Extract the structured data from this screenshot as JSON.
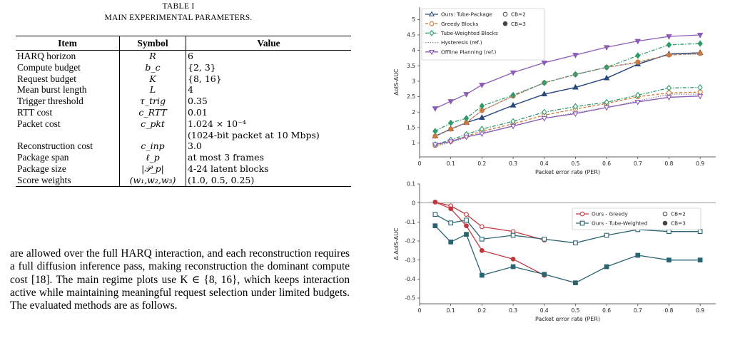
{
  "table": {
    "caption_num": "TABLE I",
    "caption_title": "MAIN EXPERIMENTAL PARAMETERS.",
    "headers": [
      "Item",
      "Symbol",
      "Value"
    ],
    "rows": [
      {
        "item": "HARQ horizon",
        "symbol": "R",
        "value": "6"
      },
      {
        "item": "Compute budget",
        "symbol": "b_c",
        "value": "{2, 3}"
      },
      {
        "item": "Request budget",
        "symbol": "K",
        "value": "{8, 16}"
      },
      {
        "item": "Mean burst length",
        "symbol": "L",
        "value": "4"
      },
      {
        "item": "Trigger threshold",
        "symbol": "τ_trig",
        "value": "0.35"
      },
      {
        "item": "RTT cost",
        "symbol": "c_RTT",
        "value": "0.01"
      },
      {
        "item": "Packet cost",
        "symbol": "c_pkt",
        "value": "1.024 × 10⁻⁴",
        "value2": "(1024-bit packet at 10 Mbps)"
      },
      {
        "item": "Reconstruction cost",
        "symbol": "c_inp",
        "value": "3.0"
      },
      {
        "item": "Package span",
        "symbol": "ℓ_p",
        "value": "at most 3 frames"
      },
      {
        "item": "Package size",
        "symbol": "|𝒫_p|",
        "value": "4-24 latent blocks"
      },
      {
        "item": "Score weights",
        "symbol": "(w₁,w₂,w₃)",
        "value": "(1.0, 0.5, 0.25)"
      }
    ]
  },
  "body_text": "are allowed over the full HARQ interaction, and each reconstruction requires a full diffusion inference pass, making reconstruction the dominant compute cost [18]. The main regime plots use K ∈ {8, 16}, which keeps interaction active while maintaining meaningful request selection under limited budgets. The evaluated methods are as follows.",
  "chart_data": [
    {
      "type": "line",
      "xlabel": "Packet error rate (PER)",
      "ylabel": "AoIS-AUC",
      "xlim": [
        0,
        0.95
      ],
      "ylim": [
        0.55,
        5.4
      ],
      "xticks": [
        "0",
        "0.1",
        "0.2",
        "0.3",
        "0.4",
        "0.5",
        "0.6",
        "0.7",
        "0.8",
        "0.9"
      ],
      "yticks": [
        "1",
        "1.5",
        "2",
        "2.5",
        "3",
        "3.5",
        "4",
        "4.5",
        "5"
      ],
      "legend_position": "top-left",
      "x": [
        0.05,
        0.1,
        0.15,
        0.2,
        0.3,
        0.4,
        0.5,
        0.6,
        0.7,
        0.8,
        0.9
      ],
      "series": [
        {
          "name": "Ours: Tube-Package",
          "color": "#2a4a7e",
          "marker": "triangle-up",
          "dash": "solid",
          "cb2": [
            1.22,
            1.45,
            1.66,
            1.82,
            2.22,
            2.58,
            2.8,
            3.1,
            3.55,
            3.88,
            3.92
          ],
          "cb3": [
            1.22,
            1.45,
            1.66,
            1.82,
            2.22,
            2.58,
            2.8,
            3.1,
            3.55,
            3.88,
            3.92
          ]
        },
        {
          "name": "Greedy Blocks",
          "color": "#d07838",
          "marker": "circle",
          "dash": "dash",
          "cb2": [
            0.92,
            1.05,
            1.22,
            1.38,
            1.62,
            1.9,
            2.1,
            2.28,
            2.5,
            2.62,
            2.65
          ],
          "cb3": [
            1.22,
            1.45,
            1.66,
            2.05,
            2.52,
            2.95,
            3.22,
            3.45,
            3.62,
            3.85,
            3.9
          ]
        },
        {
          "name": "Tube-Weighted Blocks",
          "color": "#2e9a68",
          "marker": "diamond",
          "dash": "dashdot",
          "cb2": [
            0.95,
            1.1,
            1.28,
            1.45,
            1.7,
            2.0,
            2.18,
            2.32,
            2.55,
            2.78,
            2.8
          ],
          "cb3": [
            1.38,
            1.65,
            1.8,
            2.2,
            2.55,
            2.95,
            3.22,
            3.45,
            3.83,
            4.18,
            4.22
          ]
        },
        {
          "name": "Hysteresis (ref.)",
          "color": "#8a8a9c",
          "marker": "none",
          "dash": "dot",
          "cb2": [
            0.88,
            1.02,
            1.18,
            1.32,
            1.55,
            1.8,
            1.98,
            2.15,
            2.36,
            2.58,
            2.58
          ],
          "cb3": [
            1.22,
            1.45,
            1.66,
            2.05,
            2.52,
            2.95,
            3.22,
            3.45,
            3.6,
            3.85,
            3.88
          ]
        },
        {
          "name": "Offline Planning (ref.)",
          "color": "#8a5cb8",
          "marker": "triangle-down",
          "dash": "solid",
          "cb2": [
            0.95,
            1.05,
            1.2,
            1.3,
            1.55,
            1.8,
            1.95,
            2.15,
            2.33,
            2.48,
            2.52
          ],
          "cb3": [
            2.12,
            2.35,
            2.58,
            2.88,
            3.28,
            3.6,
            3.85,
            4.1,
            4.3,
            4.45,
            4.5
          ]
        }
      ],
      "cb_legend": [
        {
          "label": "CB=2",
          "style": "open-circle"
        },
        {
          "label": "CB=3",
          "style": "filled-circle"
        }
      ]
    },
    {
      "type": "line",
      "xlabel": "Packet error rate (PER)",
      "ylabel": "Δ AoIS-AUC",
      "xlim": [
        0,
        0.95
      ],
      "ylim": [
        -0.53,
        0.1
      ],
      "xticks": [
        "0",
        "0.1",
        "0.2",
        "0.3",
        "0.4",
        "0.5",
        "0.6",
        "0.7",
        "0.8",
        "0.9"
      ],
      "yticks": [
        "0.1",
        "0",
        "-0.1",
        "-0.2",
        "-0.3",
        "-0.4",
        "-0.5"
      ],
      "legend_position": "top-right",
      "x": [
        0.05,
        0.1,
        0.15,
        0.2,
        0.3,
        0.4,
        0.5,
        0.6,
        0.7,
        0.8,
        0.9
      ],
      "series": [
        {
          "name": "Ours - Greedy",
          "color": "#c0383c",
          "marker": "circle",
          "cb2": [
            0.005,
            -0.015,
            -0.06,
            -0.125,
            -0.15,
            -0.195,
            null,
            null,
            null,
            null,
            null
          ],
          "cb3": [
            0.005,
            -0.03,
            -0.12,
            -0.25,
            -0.295,
            -0.38,
            null,
            null,
            null,
            null,
            null
          ]
        },
        {
          "name": "Ours - Tube-Weighted",
          "color": "#2a6470",
          "marker": "square",
          "cb2": [
            -0.06,
            -0.105,
            -0.09,
            -0.19,
            -0.17,
            -0.19,
            -0.21,
            -0.17,
            -0.14,
            -0.15,
            -0.15
          ],
          "cb3": [
            -0.12,
            -0.205,
            -0.165,
            -0.38,
            -0.335,
            -0.375,
            -0.42,
            -0.335,
            -0.275,
            -0.3,
            -0.3
          ]
        }
      ],
      "cb_legend": [
        {
          "label": "CB=2",
          "style": "open-circle"
        },
        {
          "label": "CB=3",
          "style": "filled-circle"
        }
      ]
    }
  ]
}
